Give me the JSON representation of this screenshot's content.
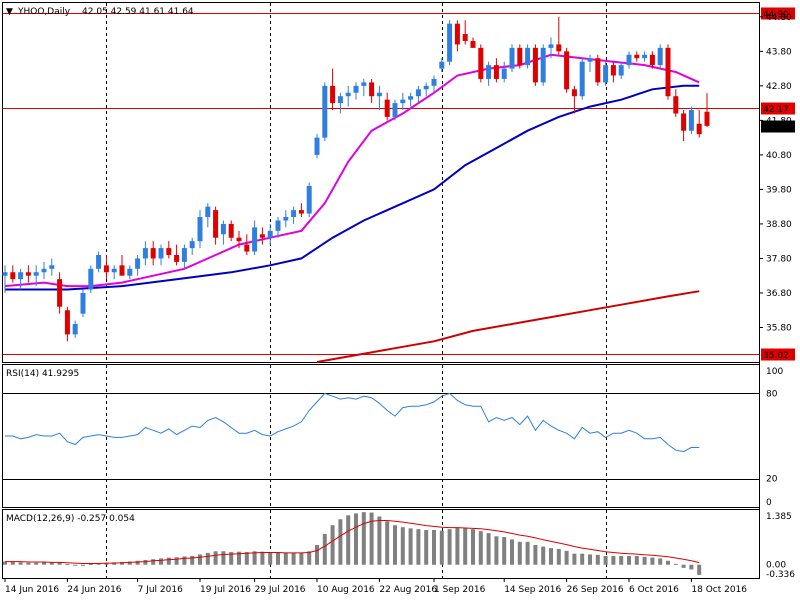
{
  "chart_data": [
    {
      "type": "candlestick",
      "header": {
        "symbol_label": "YHOO,Daily",
        "ohlc_text": "42.05 42.59 41.61 41.64"
      },
      "ylim": [
        34.8,
        45.2
      ],
      "y_ticks": [
        "44.80",
        "43.80",
        "42.80",
        "41.80",
        "40.80",
        "39.80",
        "38.80",
        "37.80",
        "36.80",
        "35.80",
        "34.80"
      ],
      "y_tick_values": [
        44.8,
        43.8,
        42.8,
        41.8,
        40.8,
        39.8,
        38.8,
        37.8,
        36.8,
        35.8,
        34.8
      ],
      "grid": false,
      "x_ticks": [
        "14 Jun 2016",
        "24 Jun 2016",
        "7 Jul 2016",
        "19 Jul 2016",
        "29 Jul 2016",
        "10 Aug 2016",
        "22 Aug 2016",
        "1 Sep 2016",
        "14 Sep 2016",
        "26 Sep 2016",
        "6 Oct 2016",
        "18 Oct 2016"
      ],
      "x_tick_bar_index": [
        0,
        8,
        17,
        25,
        32,
        40,
        48,
        55,
        64,
        72,
        80,
        88
      ],
      "month_separator_bar_index": [
        13,
        34,
        56,
        77
      ],
      "price_levels": [
        {
          "label": "44.90",
          "value": 44.9,
          "color": "#e00000"
        },
        {
          "label": "42.17",
          "value": 42.17,
          "color": "#e00000"
        },
        {
          "label": "35.02",
          "value": 35.02,
          "color": "#e00000"
        }
      ],
      "last_price": {
        "label": "41.64",
        "value": 41.64
      },
      "bull_color": "#2f7fe0",
      "bear_color": "#e00000",
      "candles": [
        {
          "o": 37.3,
          "h": 37.6,
          "l": 36.8,
          "c": 37.4
        },
        {
          "o": 37.4,
          "h": 37.6,
          "l": 37.1,
          "c": 37.2
        },
        {
          "o": 37.2,
          "h": 37.5,
          "l": 36.9,
          "c": 37.4
        },
        {
          "o": 37.4,
          "h": 37.6,
          "l": 37.1,
          "c": 37.3
        },
        {
          "o": 37.3,
          "h": 37.6,
          "l": 37.0,
          "c": 37.4
        },
        {
          "o": 37.4,
          "h": 37.7,
          "l": 37.2,
          "c": 37.5
        },
        {
          "o": 37.5,
          "h": 37.8,
          "l": 37.3,
          "c": 37.6
        },
        {
          "o": 37.2,
          "h": 37.4,
          "l": 36.2,
          "c": 36.4
        },
        {
          "o": 36.3,
          "h": 36.4,
          "l": 35.4,
          "c": 35.6
        },
        {
          "o": 35.6,
          "h": 36.0,
          "l": 35.5,
          "c": 35.9
        },
        {
          "o": 36.2,
          "h": 36.9,
          "l": 36.1,
          "c": 36.8
        },
        {
          "o": 36.9,
          "h": 37.6,
          "l": 36.8,
          "c": 37.5
        },
        {
          "o": 37.5,
          "h": 38.0,
          "l": 37.4,
          "c": 37.9
        },
        {
          "o": 37.6,
          "h": 37.9,
          "l": 37.2,
          "c": 37.4
        },
        {
          "o": 37.4,
          "h": 37.6,
          "l": 37.2,
          "c": 37.5
        },
        {
          "o": 37.6,
          "h": 37.9,
          "l": 37.4,
          "c": 37.3
        },
        {
          "o": 37.3,
          "h": 37.6,
          "l": 37.2,
          "c": 37.5
        },
        {
          "o": 37.5,
          "h": 37.9,
          "l": 37.3,
          "c": 37.8
        },
        {
          "o": 37.8,
          "h": 38.3,
          "l": 37.6,
          "c": 38.1
        },
        {
          "o": 38.1,
          "h": 38.3,
          "l": 37.6,
          "c": 37.8
        },
        {
          "o": 37.8,
          "h": 38.2,
          "l": 37.6,
          "c": 38.1
        },
        {
          "o": 38.1,
          "h": 38.3,
          "l": 37.8,
          "c": 37.9
        },
        {
          "o": 37.9,
          "h": 38.2,
          "l": 37.6,
          "c": 37.7
        },
        {
          "o": 37.7,
          "h": 38.2,
          "l": 37.5,
          "c": 38.1
        },
        {
          "o": 38.1,
          "h": 38.4,
          "l": 37.9,
          "c": 38.3
        },
        {
          "o": 38.3,
          "h": 39.2,
          "l": 38.1,
          "c": 39.0
        },
        {
          "o": 39.0,
          "h": 39.4,
          "l": 38.7,
          "c": 39.3
        },
        {
          "o": 39.2,
          "h": 39.3,
          "l": 38.2,
          "c": 38.4
        },
        {
          "o": 38.5,
          "h": 38.9,
          "l": 38.2,
          "c": 38.8
        },
        {
          "o": 38.8,
          "h": 38.9,
          "l": 38.3,
          "c": 38.4
        },
        {
          "o": 38.4,
          "h": 38.6,
          "l": 38.1,
          "c": 38.3
        },
        {
          "o": 38.2,
          "h": 38.5,
          "l": 37.9,
          "c": 38.0
        },
        {
          "o": 38.0,
          "h": 38.9,
          "l": 37.9,
          "c": 38.7
        },
        {
          "o": 38.5,
          "h": 38.7,
          "l": 38.2,
          "c": 38.4
        },
        {
          "o": 38.4,
          "h": 38.8,
          "l": 38.2,
          "c": 38.6
        },
        {
          "o": 38.6,
          "h": 39.0,
          "l": 38.4,
          "c": 38.9
        },
        {
          "o": 38.9,
          "h": 39.2,
          "l": 38.7,
          "c": 39.0
        },
        {
          "o": 39.0,
          "h": 39.3,
          "l": 38.8,
          "c": 39.2
        },
        {
          "o": 39.2,
          "h": 39.4,
          "l": 39.0,
          "c": 39.1
        },
        {
          "o": 39.1,
          "h": 40.0,
          "l": 39.0,
          "c": 39.9
        },
        {
          "o": 40.8,
          "h": 41.4,
          "l": 40.7,
          "c": 41.3
        },
        {
          "o": 41.3,
          "h": 42.9,
          "l": 41.2,
          "c": 42.8
        },
        {
          "o": 42.8,
          "h": 43.3,
          "l": 42.1,
          "c": 42.3
        },
        {
          "o": 42.3,
          "h": 42.6,
          "l": 42.0,
          "c": 42.5
        },
        {
          "o": 42.5,
          "h": 42.8,
          "l": 42.2,
          "c": 42.6
        },
        {
          "o": 42.6,
          "h": 42.9,
          "l": 42.4,
          "c": 42.8
        },
        {
          "o": 42.8,
          "h": 43.0,
          "l": 42.5,
          "c": 42.9
        },
        {
          "o": 42.9,
          "h": 43.0,
          "l": 42.3,
          "c": 42.5
        },
        {
          "o": 42.5,
          "h": 42.8,
          "l": 42.1,
          "c": 42.6
        },
        {
          "o": 42.4,
          "h": 42.6,
          "l": 41.8,
          "c": 41.9
        },
        {
          "o": 41.9,
          "h": 42.4,
          "l": 41.8,
          "c": 42.3
        },
        {
          "o": 42.3,
          "h": 42.6,
          "l": 42.1,
          "c": 42.4
        },
        {
          "o": 42.4,
          "h": 42.6,
          "l": 42.2,
          "c": 42.5
        },
        {
          "o": 42.5,
          "h": 42.8,
          "l": 42.3,
          "c": 42.7
        },
        {
          "o": 42.7,
          "h": 42.9,
          "l": 42.5,
          "c": 42.8
        },
        {
          "o": 42.8,
          "h": 43.1,
          "l": 42.6,
          "c": 43.0
        },
        {
          "o": 43.3,
          "h": 43.6,
          "l": 43.2,
          "c": 43.5
        },
        {
          "o": 43.5,
          "h": 44.7,
          "l": 43.4,
          "c": 44.6
        },
        {
          "o": 44.6,
          "h": 44.7,
          "l": 43.8,
          "c": 44.0
        },
        {
          "o": 44.3,
          "h": 44.7,
          "l": 44.0,
          "c": 44.1
        },
        {
          "o": 44.1,
          "h": 44.2,
          "l": 43.9,
          "c": 43.9
        },
        {
          "o": 43.9,
          "h": 44.0,
          "l": 42.9,
          "c": 43.0
        },
        {
          "o": 43.0,
          "h": 43.5,
          "l": 42.8,
          "c": 43.4
        },
        {
          "o": 43.4,
          "h": 43.6,
          "l": 42.9,
          "c": 43.0
        },
        {
          "o": 43.0,
          "h": 43.5,
          "l": 42.9,
          "c": 43.3
        },
        {
          "o": 43.3,
          "h": 44.0,
          "l": 43.2,
          "c": 43.9
        },
        {
          "o": 43.9,
          "h": 44.0,
          "l": 43.3,
          "c": 43.4
        },
        {
          "o": 43.4,
          "h": 44.0,
          "l": 43.3,
          "c": 43.9
        },
        {
          "o": 43.9,
          "h": 44.0,
          "l": 42.8,
          "c": 42.9
        },
        {
          "o": 42.9,
          "h": 44.0,
          "l": 42.8,
          "c": 43.9
        },
        {
          "o": 43.9,
          "h": 44.2,
          "l": 43.6,
          "c": 44.0
        },
        {
          "o": 44.0,
          "h": 44.8,
          "l": 43.7,
          "c": 43.8
        },
        {
          "o": 43.8,
          "h": 43.9,
          "l": 42.6,
          "c": 42.7
        },
        {
          "o": 42.7,
          "h": 42.8,
          "l": 42.0,
          "c": 42.5
        },
        {
          "o": 42.5,
          "h": 43.6,
          "l": 42.4,
          "c": 43.5
        },
        {
          "o": 43.5,
          "h": 43.7,
          "l": 43.2,
          "c": 43.6
        },
        {
          "o": 43.6,
          "h": 43.7,
          "l": 42.8,
          "c": 42.9
        },
        {
          "o": 42.9,
          "h": 43.5,
          "l": 42.8,
          "c": 43.4
        },
        {
          "o": 43.4,
          "h": 43.5,
          "l": 42.9,
          "c": 43.1
        },
        {
          "o": 43.1,
          "h": 43.5,
          "l": 43.0,
          "c": 43.4
        },
        {
          "o": 43.4,
          "h": 43.8,
          "l": 43.3,
          "c": 43.7
        },
        {
          "o": 43.7,
          "h": 43.8,
          "l": 43.5,
          "c": 43.6
        },
        {
          "o": 43.6,
          "h": 43.8,
          "l": 43.5,
          "c": 43.7
        },
        {
          "o": 43.7,
          "h": 43.8,
          "l": 43.3,
          "c": 43.4
        },
        {
          "o": 43.4,
          "h": 44.0,
          "l": 43.3,
          "c": 43.9
        },
        {
          "o": 43.9,
          "h": 44.0,
          "l": 42.4,
          "c": 42.5
        },
        {
          "o": 42.5,
          "h": 42.7,
          "l": 41.9,
          "c": 42.0
        },
        {
          "o": 42.0,
          "h": 42.1,
          "l": 41.2,
          "c": 41.5
        },
        {
          "o": 41.5,
          "h": 42.2,
          "l": 41.4,
          "c": 42.1
        },
        {
          "o": 41.7,
          "h": 42.1,
          "l": 41.3,
          "c": 41.4
        },
        {
          "o": 42.05,
          "h": 42.59,
          "l": 41.61,
          "c": 41.64
        }
      ],
      "moving_averages": [
        {
          "color": "#e000e0",
          "points": [
            [
              0,
              37.0
            ],
            [
              5,
              37.1
            ],
            [
              8,
              37.0
            ],
            [
              11,
              37.0
            ],
            [
              15,
              37.1
            ],
            [
              19,
              37.3
            ],
            [
              23,
              37.5
            ],
            [
              27,
              37.9
            ],
            [
              30,
              38.2
            ],
            [
              34,
              38.4
            ],
            [
              38,
              38.6
            ],
            [
              41,
              39.4
            ],
            [
              44,
              40.6
            ],
            [
              47,
              41.5
            ],
            [
              51,
              42.0
            ],
            [
              55,
              42.6
            ],
            [
              58,
              43.1
            ],
            [
              62,
              43.3
            ],
            [
              66,
              43.4
            ],
            [
              70,
              43.7
            ],
            [
              74,
              43.6
            ],
            [
              78,
              43.5
            ],
            [
              82,
              43.4
            ],
            [
              86,
              43.2
            ],
            [
              89,
              42.9
            ]
          ]
        },
        {
          "color": "#0000c0",
          "points": [
            [
              0,
              36.9
            ],
            [
              8,
              36.9
            ],
            [
              15,
              37.0
            ],
            [
              22,
              37.2
            ],
            [
              29,
              37.4
            ],
            [
              34,
              37.6
            ],
            [
              38,
              37.8
            ],
            [
              42,
              38.4
            ],
            [
              46,
              38.9
            ],
            [
              50,
              39.3
            ],
            [
              55,
              39.8
            ],
            [
              59,
              40.5
            ],
            [
              63,
              41.0
            ],
            [
              67,
              41.5
            ],
            [
              71,
              41.9
            ],
            [
              75,
              42.2
            ],
            [
              79,
              42.4
            ],
            [
              83,
              42.7
            ],
            [
              87,
              42.8
            ],
            [
              89,
              42.8
            ]
          ]
        },
        {
          "color": "#d00000",
          "points": [
            [
              40,
              34.8
            ],
            [
              45,
              35.0
            ],
            [
              50,
              35.2
            ],
            [
              55,
              35.4
            ],
            [
              60,
              35.7
            ],
            [
              65,
              35.9
            ],
            [
              70,
              36.1
            ],
            [
              75,
              36.3
            ],
            [
              80,
              36.5
            ],
            [
              85,
              36.7
            ],
            [
              89,
              36.85
            ]
          ]
        }
      ]
    },
    {
      "type": "line",
      "title": "RSI(14) 41.9295",
      "ylim": [
        0,
        100
      ],
      "y_ticks": [
        "100",
        "80",
        "20",
        "0"
      ],
      "y_tick_values": [
        100,
        80,
        20,
        0
      ],
      "levels": [
        80,
        20
      ],
      "color": "#2f7fe0",
      "values": [
        50,
        50,
        48,
        49,
        51,
        50,
        50,
        52,
        46,
        44,
        49,
        50,
        51,
        50,
        49,
        49,
        50,
        51,
        56,
        54,
        52,
        55,
        51,
        54,
        57,
        56,
        61,
        63,
        60,
        56,
        52,
        52,
        54,
        51,
        50,
        53,
        55,
        57,
        60,
        68,
        74,
        80,
        78,
        76,
        77,
        76,
        78,
        77,
        73,
        68,
        64,
        70,
        71,
        71,
        72,
        74,
        78,
        80,
        75,
        72,
        71,
        71,
        60,
        63,
        61,
        63,
        58,
        64,
        54,
        61,
        57,
        54,
        52,
        48,
        56,
        52,
        53,
        49,
        52,
        52,
        54,
        52,
        48,
        48,
        49,
        44,
        40,
        39,
        42,
        41.9
      ]
    },
    {
      "type": "bar",
      "title": "MACD(12,26,9) -0.257 0.054",
      "ylim": [
        -0.336,
        1.385
      ],
      "y_ticks": [
        "1.385",
        "0.00",
        "-0.336"
      ],
      "y_tick_values": [
        1.385,
        0.0,
        -0.336
      ],
      "bar_color": "#808080",
      "signal_color": "#e00000",
      "histogram": [
        0.08,
        0.08,
        0.06,
        0.05,
        0.05,
        0.06,
        0.06,
        0.06,
        0.02,
        0.0,
        0.0,
        0.02,
        0.04,
        0.05,
        0.06,
        0.07,
        0.08,
        0.1,
        0.12,
        0.14,
        0.16,
        0.18,
        0.19,
        0.21,
        0.22,
        0.26,
        0.3,
        0.34,
        0.34,
        0.32,
        0.33,
        0.32,
        0.34,
        0.33,
        0.32,
        0.3,
        0.3,
        0.3,
        0.3,
        0.34,
        0.5,
        0.78,
        1.0,
        1.15,
        1.25,
        1.3,
        1.33,
        1.32,
        1.22,
        1.1,
        1.0,
        0.95,
        0.92,
        0.9,
        0.88,
        0.88,
        0.86,
        0.9,
        0.94,
        0.92,
        0.9,
        0.85,
        0.8,
        0.72,
        0.7,
        0.64,
        0.58,
        0.58,
        0.5,
        0.46,
        0.42,
        0.4,
        0.35,
        0.28,
        0.28,
        0.26,
        0.25,
        0.22,
        0.22,
        0.22,
        0.22,
        0.22,
        0.2,
        0.18,
        0.16,
        0.1,
        0.02,
        -0.08,
        -0.12,
        -0.257
      ],
      "signal": [
        0.08,
        0.08,
        0.08,
        0.07,
        0.07,
        0.07,
        0.06,
        0.06,
        0.05,
        0.04,
        0.03,
        0.03,
        0.03,
        0.04,
        0.04,
        0.05,
        0.06,
        0.07,
        0.08,
        0.1,
        0.11,
        0.13,
        0.14,
        0.16,
        0.17,
        0.19,
        0.21,
        0.24,
        0.26,
        0.27,
        0.28,
        0.29,
        0.3,
        0.31,
        0.31,
        0.31,
        0.3,
        0.3,
        0.3,
        0.31,
        0.36,
        0.47,
        0.6,
        0.73,
        0.85,
        0.95,
        1.04,
        1.1,
        1.12,
        1.12,
        1.1,
        1.08,
        1.05,
        1.02,
        0.99,
        0.97,
        0.95,
        0.94,
        0.94,
        0.93,
        0.92,
        0.91,
        0.89,
        0.86,
        0.83,
        0.79,
        0.75,
        0.72,
        0.68,
        0.63,
        0.59,
        0.55,
        0.51,
        0.46,
        0.42,
        0.39,
        0.36,
        0.33,
        0.31,
        0.29,
        0.28,
        0.27,
        0.25,
        0.24,
        0.22,
        0.2,
        0.17,
        0.14,
        0.1,
        0.054
      ]
    }
  ]
}
